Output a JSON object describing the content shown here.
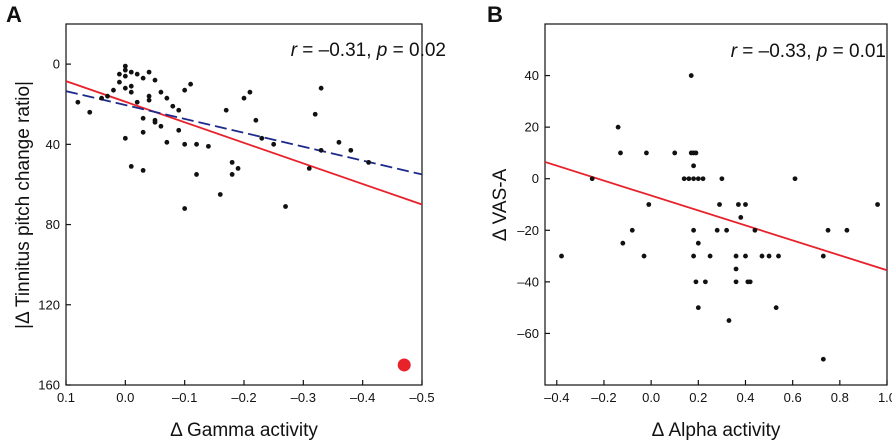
{
  "chart_data": [
    {
      "panel": "A",
      "type": "scatter",
      "xlabel": "Δ Gamma activity",
      "ylabel": "|Δ Tinnitus pitch change ratio|",
      "xlim": [
        0.1,
        -0.5
      ],
      "ylim": [
        160,
        -20
      ],
      "xticks": [
        0.1,
        0.0,
        -0.1,
        -0.2,
        -0.3,
        -0.4,
        -0.5
      ],
      "xtick_labels": [
        "0.1",
        "0.0",
        "–0.1",
        "–0.2",
        "–0.3",
        "–0.4",
        "–0.5"
      ],
      "yticks": [
        0,
        40,
        80,
        120,
        160
      ],
      "ytick_labels": [
        "0",
        "40",
        "80",
        "120",
        "160"
      ],
      "stat": {
        "r_label": "r",
        "r_value": " = –0.31, ",
        "p_label": "p",
        "p_value": " = 0.02"
      },
      "points": [
        [
          0.08,
          19
        ],
        [
          0.06,
          24
        ],
        [
          0.04,
          17
        ],
        [
          0.03,
          16
        ],
        [
          0.02,
          13
        ],
        [
          0.01,
          5
        ],
        [
          0.01,
          9
        ],
        [
          0.0,
          3
        ],
        [
          0.0,
          1
        ],
        [
          0.0,
          6
        ],
        [
          0.0,
          12
        ],
        [
          0.0,
          37
        ],
        [
          -0.01,
          4
        ],
        [
          -0.01,
          11
        ],
        [
          -0.01,
          14
        ],
        [
          -0.01,
          51
        ],
        [
          -0.02,
          5
        ],
        [
          -0.02,
          19
        ],
        [
          -0.03,
          7
        ],
        [
          -0.03,
          27
        ],
        [
          -0.03,
          34
        ],
        [
          -0.03,
          53
        ],
        [
          -0.04,
          4
        ],
        [
          -0.04,
          18
        ],
        [
          -0.04,
          16
        ],
        [
          -0.05,
          8
        ],
        [
          -0.05,
          29
        ],
        [
          -0.05,
          28
        ],
        [
          -0.06,
          14
        ],
        [
          -0.06,
          31
        ],
        [
          -0.07,
          17
        ],
        [
          -0.07,
          39
        ],
        [
          -0.08,
          21
        ],
        [
          -0.09,
          23
        ],
        [
          -0.09,
          33
        ],
        [
          -0.1,
          13
        ],
        [
          -0.1,
          40
        ],
        [
          -0.1,
          72
        ],
        [
          -0.11,
          10
        ],
        [
          -0.12,
          40
        ],
        [
          -0.12,
          55
        ],
        [
          -0.14,
          41
        ],
        [
          -0.16,
          65
        ],
        [
          -0.17,
          23
        ],
        [
          -0.18,
          49
        ],
        [
          -0.18,
          55
        ],
        [
          -0.19,
          52
        ],
        [
          -0.2,
          17
        ],
        [
          -0.21,
          14
        ],
        [
          -0.22,
          28
        ],
        [
          -0.23,
          37
        ],
        [
          -0.25,
          40
        ],
        [
          -0.27,
          71
        ],
        [
          -0.31,
          52
        ],
        [
          -0.32,
          25
        ],
        [
          -0.33,
          12
        ],
        [
          -0.33,
          43
        ],
        [
          -0.36,
          39
        ],
        [
          -0.38,
          43
        ],
        [
          -0.41,
          49
        ],
        [
          -0.47,
          150
        ]
      ],
      "highlight_point": [
        -0.47,
        150
      ],
      "highlight_color": "#e8222b",
      "point_color": "#111111",
      "fit_lines": [
        {
          "name": "solid fit",
          "color": "#e8222b",
          "style": "solid",
          "x": [
            0.1,
            -0.5
          ],
          "y": [
            8.5,
            70
          ]
        },
        {
          "name": "dashed fit",
          "color": "#1d2a8c",
          "style": "dashed",
          "x": [
            0.1,
            -0.5
          ],
          "y": [
            13.5,
            55
          ]
        }
      ]
    },
    {
      "panel": "B",
      "type": "scatter",
      "xlabel": "Δ Alpha activity",
      "ylabel": "Δ  VAS-A",
      "xlim": [
        -0.45,
        1.0
      ],
      "ylim": [
        -80,
        60
      ],
      "xticks": [
        -0.4,
        -0.2,
        0.0,
        0.2,
        0.4,
        0.6,
        0.8,
        1.0
      ],
      "xtick_labels": [
        "–0.4",
        "–0.2",
        "0.0",
        "0.2",
        "0.4",
        "0.6",
        "0.8",
        "1.0"
      ],
      "yticks": [
        40,
        20,
        0,
        -20,
        -40,
        -60
      ],
      "ytick_labels": [
        "40",
        "20",
        "0",
        "–20",
        "–40",
        "–60"
      ],
      "stat": {
        "r_label": "r",
        "r_value": " = –0.33, ",
        "p_label": "p",
        "p_value": " = 0.01"
      },
      "points": [
        [
          -0.38,
          -30
        ],
        [
          -0.25,
          0
        ],
        [
          -0.14,
          20
        ],
        [
          -0.13,
          10
        ],
        [
          -0.12,
          -25
        ],
        [
          -0.08,
          -20
        ],
        [
          -0.03,
          -30
        ],
        [
          -0.02,
          10
        ],
        [
          -0.01,
          -10
        ],
        [
          0.1,
          10
        ],
        [
          0.14,
          0
        ],
        [
          0.17,
          40
        ],
        [
          0.17,
          10
        ],
        [
          0.18,
          10
        ],
        [
          0.18,
          5
        ],
        [
          0.18,
          0
        ],
        [
          0.2,
          0
        ],
        [
          0.16,
          0
        ],
        [
          0.19,
          10
        ],
        [
          0.18,
          -20
        ],
        [
          0.18,
          -30
        ],
        [
          0.19,
          -40
        ],
        [
          0.2,
          -50
        ],
        [
          0.2,
          -25
        ],
        [
          0.22,
          0
        ],
        [
          0.23,
          -40
        ],
        [
          0.25,
          -30
        ],
        [
          0.28,
          -20
        ],
        [
          0.29,
          -10
        ],
        [
          0.3,
          0
        ],
        [
          0.32,
          -20
        ],
        [
          0.33,
          -55
        ],
        [
          0.36,
          -30
        ],
        [
          0.36,
          -35
        ],
        [
          0.36,
          -40
        ],
        [
          0.37,
          -10
        ],
        [
          0.38,
          -15
        ],
        [
          0.4,
          -10
        ],
        [
          0.4,
          -30
        ],
        [
          0.41,
          -40
        ],
        [
          0.42,
          -40
        ],
        [
          0.44,
          -20
        ],
        [
          0.47,
          -30
        ],
        [
          0.5,
          -30
        ],
        [
          0.53,
          -50
        ],
        [
          0.54,
          -30
        ],
        [
          0.61,
          0
        ],
        [
          0.73,
          -30
        ],
        [
          0.73,
          -70
        ],
        [
          0.75,
          -20
        ],
        [
          0.83,
          -20
        ],
        [
          0.96,
          -10
        ]
      ],
      "point_color": "#111111",
      "fit_lines": [
        {
          "name": "solid fit",
          "color": "#e8222b",
          "style": "solid",
          "x": [
            -0.45,
            1.0
          ],
          "y": [
            6.5,
            -35.5
          ]
        }
      ]
    }
  ]
}
